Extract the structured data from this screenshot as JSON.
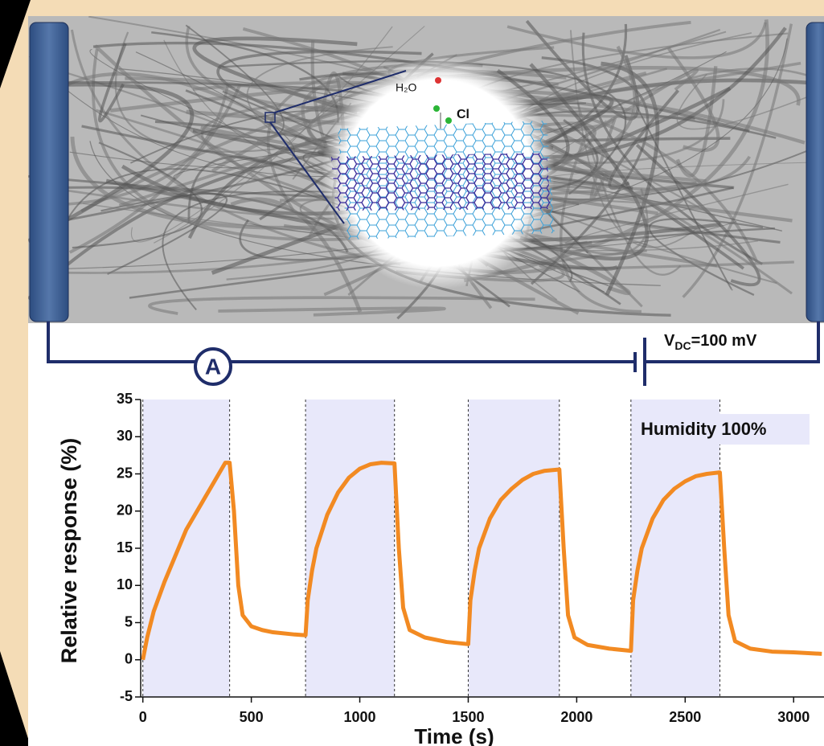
{
  "figure": {
    "water_label": "H₂O",
    "chlorine_label": "Cl",
    "ammeter_label": "A",
    "voltage_label": {
      "symbol": "V",
      "subscript": "DC",
      "text": "=100 mV"
    }
  },
  "chart_data": {
    "type": "line",
    "xlabel": "Time (s)",
    "ylabel": "Relative response (%)",
    "annotation": "Humidity 100%",
    "color": "#f28a22",
    "shade_color": "#e8e8fa",
    "shaded_intervals": [
      [
        0,
        400
      ],
      [
        750,
        1160
      ],
      [
        1500,
        1920
      ],
      [
        2250,
        2660
      ]
    ],
    "x": [
      0,
      20,
      50,
      100,
      150,
      200,
      250,
      300,
      350,
      380,
      400,
      420,
      440,
      460,
      500,
      550,
      600,
      700,
      750,
      760,
      780,
      800,
      850,
      900,
      950,
      1000,
      1050,
      1100,
      1160,
      1180,
      1200,
      1230,
      1300,
      1400,
      1500,
      1510,
      1530,
      1550,
      1600,
      1650,
      1700,
      1750,
      1800,
      1850,
      1920,
      1940,
      1960,
      1990,
      2050,
      2150,
      2250,
      2260,
      2280,
      2300,
      2350,
      2400,
      2450,
      2500,
      2550,
      2600,
      2660,
      2680,
      2700,
      2730,
      2800,
      2900,
      3000,
      3130
    ],
    "values": [
      0,
      3,
      6.5,
      10.5,
      14,
      17.5,
      20,
      22.5,
      25,
      26.5,
      26.5,
      20,
      10,
      6,
      4.5,
      4,
      3.7,
      3.4,
      3.3,
      8,
      12,
      15,
      19.5,
      22.5,
      24.5,
      25.7,
      26.3,
      26.5,
      26.4,
      15,
      7,
      4,
      3,
      2.4,
      2.1,
      8,
      12,
      15,
      19,
      21.5,
      23,
      24.2,
      25,
      25.4,
      25.6,
      15,
      6,
      3,
      2,
      1.5,
      1.2,
      8,
      12,
      15,
      19,
      21.5,
      23,
      24,
      24.7,
      25,
      25.2,
      15,
      6,
      2.5,
      1.5,
      1.1,
      1,
      0.8
    ],
    "xlim": [
      -10,
      3140
    ],
    "ylim": [
      -5,
      35
    ],
    "xticks": [
      0,
      500,
      1000,
      1500,
      2000,
      2500,
      3000
    ],
    "yticks": [
      -5,
      0,
      5,
      10,
      15,
      20,
      25,
      30,
      35
    ]
  }
}
